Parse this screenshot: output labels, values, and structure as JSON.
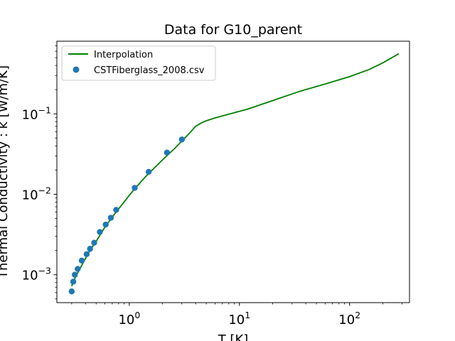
{
  "chart_data": {
    "type": "line",
    "title": "Data for G10_parent",
    "xlabel": "T [K]",
    "ylabel": "Thermal Conductivity : k [W/m/K]",
    "xscale": "log",
    "yscale": "log",
    "xlim": [
      0.22,
      350
    ],
    "ylim": [
      0.00045,
      0.8
    ],
    "grid": false,
    "legend_position": "top-left",
    "x_ticks": [
      {
        "value": 1,
        "base": "10",
        "exp": "0"
      },
      {
        "value": 10,
        "base": "10",
        "exp": "1"
      },
      {
        "value": 100,
        "base": "10",
        "exp": "2"
      }
    ],
    "y_ticks": [
      {
        "value": 0.001,
        "base": "10",
        "exp": "−3"
      },
      {
        "value": 0.01,
        "base": "10",
        "exp": "−2"
      },
      {
        "value": 0.1,
        "base": "10",
        "exp": "−1"
      }
    ],
    "series": [
      {
        "name": "Interpolation",
        "kind": "line",
        "color": "#008000",
        "x": [
          0.3,
          0.31,
          0.33,
          0.35,
          0.38,
          0.42,
          0.46,
          0.5,
          0.55,
          0.6,
          0.67,
          0.75,
          0.85,
          1.0,
          1.15,
          1.4,
          1.7,
          2.1,
          2.6,
          3.0,
          3.5,
          4.0,
          4.5,
          5.0,
          6.0,
          8.0,
          12.0,
          20.0,
          35.0,
          60.0,
          100.0,
          150.0,
          200.0,
          280.0
        ],
        "y": [
          0.00072,
          0.00082,
          0.00098,
          0.00113,
          0.0014,
          0.0018,
          0.0022,
          0.0026,
          0.0032,
          0.0039,
          0.0048,
          0.0059,
          0.0073,
          0.0097,
          0.0122,
          0.0165,
          0.0215,
          0.0285,
          0.0375,
          0.046,
          0.057,
          0.07,
          0.077,
          0.082,
          0.089,
          0.099,
          0.115,
          0.146,
          0.19,
          0.235,
          0.29,
          0.355,
          0.43,
          0.56
        ]
      },
      {
        "name": "CSTFiberglass_2008.csv",
        "kind": "scatter",
        "color": "#1f77b4",
        "x": [
          0.3,
          0.31,
          0.32,
          0.34,
          0.37,
          0.41,
          0.44,
          0.48,
          0.54,
          0.61,
          0.68,
          0.76,
          1.12,
          1.5,
          2.2,
          3.0
        ],
        "y": [
          0.00062,
          0.00082,
          0.001,
          0.00118,
          0.0015,
          0.0018,
          0.0021,
          0.0025,
          0.0034,
          0.0042,
          0.0051,
          0.0064,
          0.012,
          0.019,
          0.033,
          0.048
        ]
      }
    ]
  }
}
